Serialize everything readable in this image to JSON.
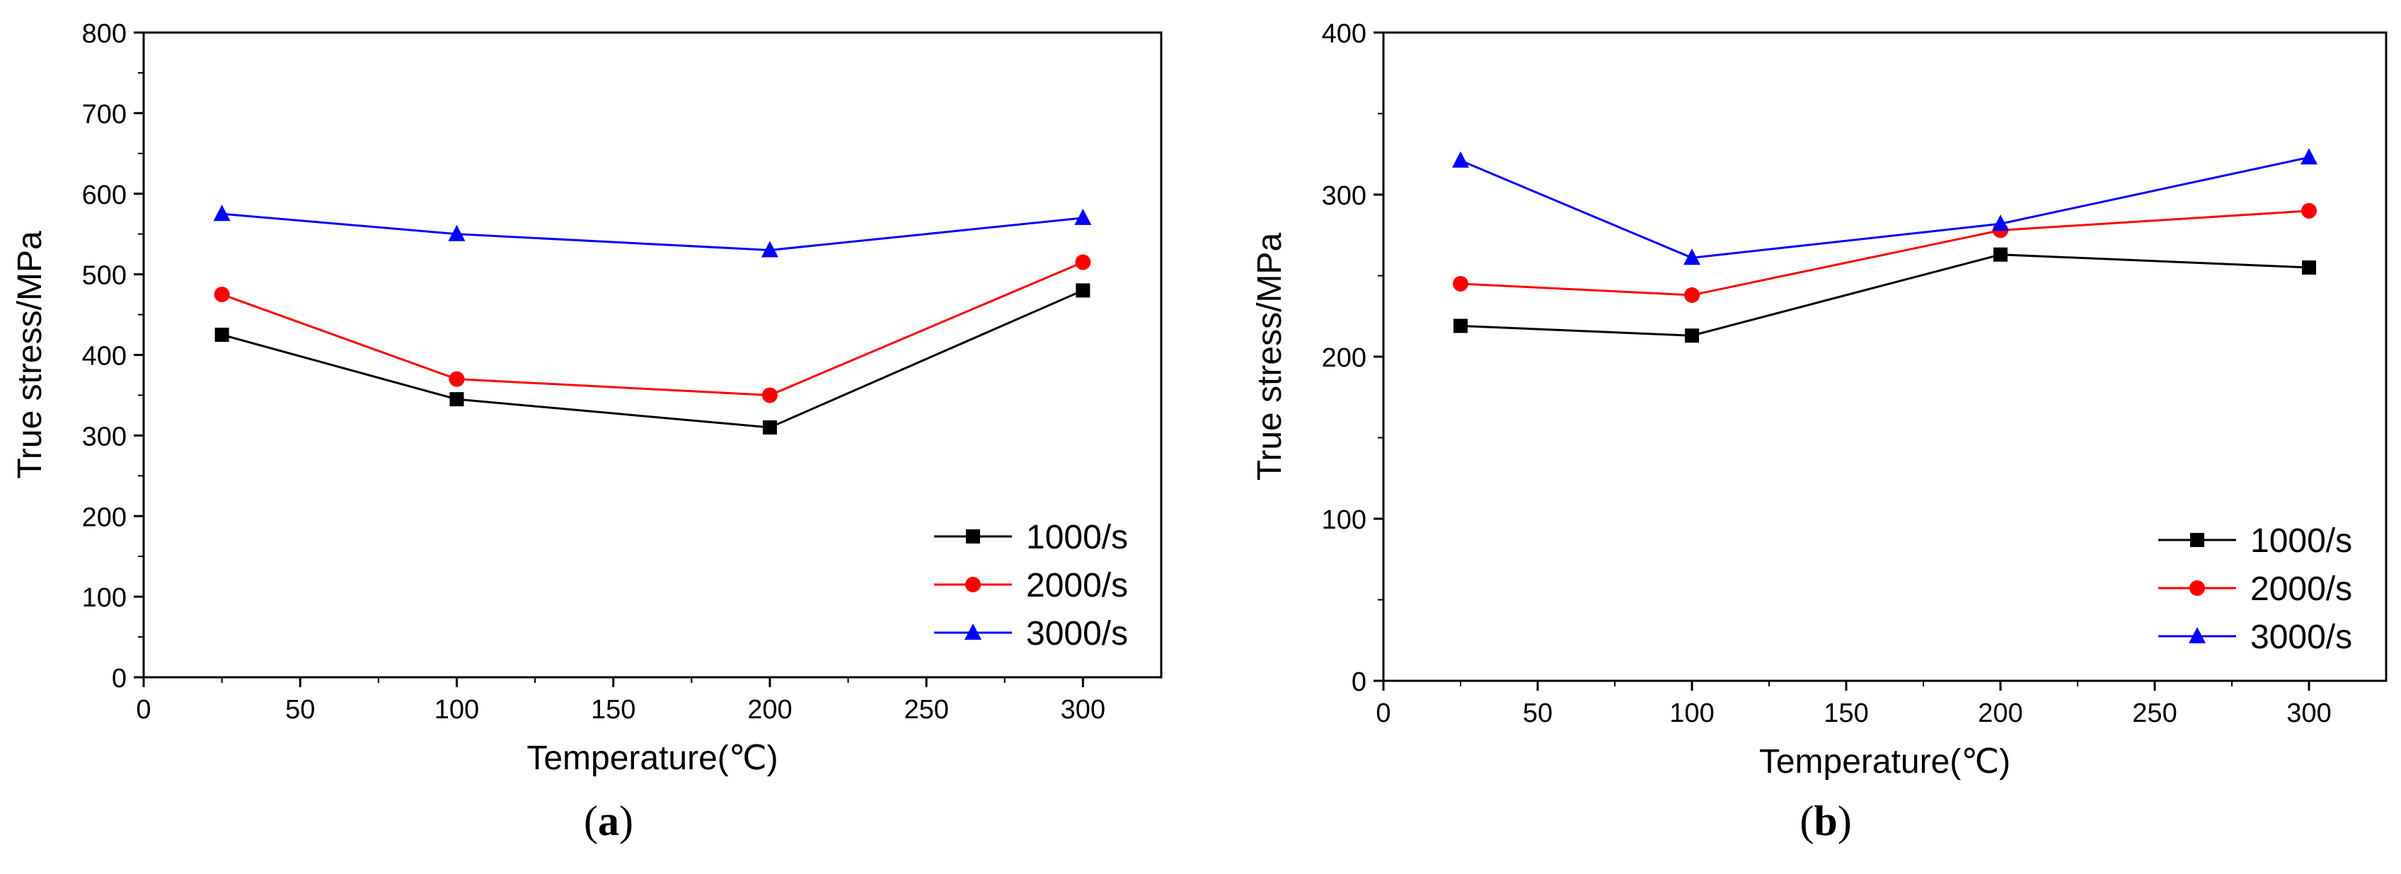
{
  "chart_data": [
    {
      "panel_label": "a",
      "type": "line",
      "xlabel": "Temperature(℃)",
      "ylabel": "True stress/MPa",
      "xlim": [
        0,
        325
      ],
      "ylim": [
        0,
        800
      ],
      "xticks": [
        0,
        50,
        100,
        150,
        200,
        250,
        300
      ],
      "yticks": [
        0,
        100,
        200,
        300,
        400,
        500,
        600,
        700,
        800
      ],
      "grid": false,
      "legend_position": "bottom-right",
      "x": [
        25,
        100,
        200,
        300
      ],
      "series": [
        {
          "name": "1000/s",
          "values": [
            425,
            345,
            310,
            480
          ],
          "color": "#000000",
          "marker": "square"
        },
        {
          "name": "2000/s",
          "values": [
            475,
            370,
            350,
            515
          ],
          "color": "#ff0000",
          "marker": "circle"
        },
        {
          "name": "3000/s",
          "values": [
            575,
            550,
            530,
            570
          ],
          "color": "#0000ff",
          "marker": "triangle"
        }
      ]
    },
    {
      "panel_label": "b",
      "type": "line",
      "xlabel": "Temperature(℃)",
      "ylabel": "True stress/MPa",
      "xlim": [
        0,
        325
      ],
      "ylim": [
        0,
        400
      ],
      "xticks": [
        0,
        50,
        100,
        150,
        200,
        250,
        300
      ],
      "yticks": [
        0,
        100,
        200,
        300,
        400
      ],
      "grid": false,
      "legend_position": "bottom-right",
      "x": [
        25,
        100,
        200,
        300
      ],
      "series": [
        {
          "name": "1000/s",
          "values": [
            219,
            213,
            263,
            255
          ],
          "color": "#000000",
          "marker": "square"
        },
        {
          "name": "2000/s",
          "values": [
            245,
            238,
            278,
            290
          ],
          "color": "#ff0000",
          "marker": "circle"
        },
        {
          "name": "3000/s",
          "values": [
            321,
            261,
            282,
            323
          ],
          "color": "#0000ff",
          "marker": "triangle"
        }
      ]
    }
  ]
}
